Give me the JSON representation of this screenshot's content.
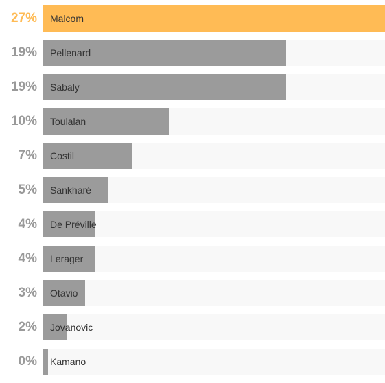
{
  "chart_data": {
    "type": "bar",
    "orientation": "horizontal",
    "categories": [
      "Malcom",
      "Pellenard",
      "Sabaly",
      "Toulalan",
      "Costil",
      "Sankharé",
      "De Préville",
      "Lerager",
      "Otavio",
      "Jovanovic",
      "Kamano"
    ],
    "value_labels": [
      "27%",
      "19%",
      "19%",
      "10%",
      "7%",
      "5%",
      "4%",
      "4%",
      "3%",
      "2%",
      "0%"
    ],
    "values": [
      27,
      19.2,
      19.2,
      9.9,
      7,
      5.1,
      4.1,
      4.1,
      3.3,
      1.9,
      0.4
    ],
    "xlim": [
      0,
      27
    ],
    "highlight_index": 0,
    "colors": {
      "highlight": "#ffbb55",
      "bar": "#9b9b9b",
      "track": "#f8f8f8",
      "pct_text": "#9a9a9a",
      "name_text": "#333333"
    },
    "grid": false,
    "legend": "none"
  }
}
